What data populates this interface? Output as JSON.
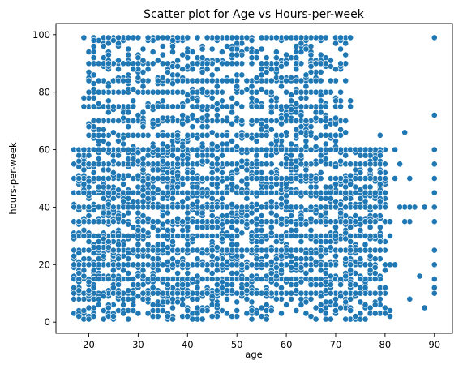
{
  "chart_data": {
    "type": "scatter",
    "title": "Scatter plot for Age vs Hours-per-week",
    "xlabel": "age",
    "ylabel": "hours-per-week",
    "xlim": [
      13.35,
      93.65
    ],
    "ylim": [
      -3.9,
      103.9
    ],
    "x_ticks": [
      20,
      30,
      40,
      50,
      60,
      70,
      80,
      90
    ],
    "y_ticks": [
      0,
      20,
      40,
      60,
      80,
      100
    ],
    "grid": false,
    "legend": "none",
    "point_color": "#1f77b4",
    "x_range_observed": [
      17,
      90
    ],
    "y_range_observed": [
      1,
      99
    ],
    "dense_regions": [
      {
        "age": [
          17,
          80
        ],
        "hours": [
          1,
          60
        ]
      },
      {
        "age": [
          20,
          72
        ],
        "hours": [
          60,
          99
        ]
      }
    ],
    "common_hours": [
      10,
      15,
      20,
      25,
      30,
      35,
      40,
      45,
      50,
      55,
      60,
      65,
      70,
      75,
      80,
      84,
      90,
      99
    ],
    "sample_points": [
      [
        90,
        99
      ],
      [
        90,
        72
      ],
      [
        90,
        60
      ],
      [
        90,
        55
      ],
      [
        90,
        50
      ],
      [
        90,
        45
      ],
      [
        90,
        40
      ],
      [
        90,
        35
      ],
      [
        90,
        25
      ],
      [
        90,
        20
      ],
      [
        90,
        15
      ],
      [
        90,
        12
      ],
      [
        90,
        10
      ],
      [
        88,
        40
      ],
      [
        87,
        16
      ],
      [
        88,
        5
      ],
      [
        86,
        40
      ],
      [
        85,
        40
      ],
      [
        85,
        35
      ],
      [
        85,
        8
      ],
      [
        85,
        50
      ],
      [
        84,
        66
      ],
      [
        84,
        40
      ],
      [
        84,
        35
      ],
      [
        83,
        40
      ],
      [
        83,
        55
      ],
      [
        82,
        50
      ],
      [
        82,
        60
      ],
      [
        81,
        30
      ],
      [
        81,
        20
      ],
      [
        81,
        4
      ],
      [
        81,
        2
      ],
      [
        80,
        45
      ],
      [
        80,
        20
      ],
      [
        80,
        12
      ],
      [
        79,
        65
      ],
      [
        78,
        10
      ],
      [
        77,
        55
      ],
      [
        77,
        40
      ],
      [
        76,
        45
      ],
      [
        75,
        60
      ],
      [
        74,
        50
      ],
      [
        73,
        99
      ],
      [
        73,
        77
      ],
      [
        73,
        75
      ],
      [
        72,
        70
      ],
      [
        71,
        80
      ],
      [
        70,
        65
      ],
      [
        72,
        10
      ],
      [
        74,
        2
      ],
      [
        68,
        90
      ],
      [
        67,
        99
      ],
      [
        66,
        99
      ],
      [
        65,
        99
      ],
      [
        64,
        99
      ],
      [
        63,
        99
      ],
      [
        62,
        99
      ],
      [
        60,
        99
      ],
      [
        58,
        99
      ],
      [
        56,
        99
      ],
      [
        55,
        99
      ],
      [
        52,
        99
      ],
      [
        50,
        99
      ],
      [
        48,
        99
      ],
      [
        46,
        99
      ],
      [
        44,
        99
      ],
      [
        42,
        99
      ],
      [
        40,
        99
      ],
      [
        38,
        99
      ],
      [
        36,
        99
      ],
      [
        34,
        99
      ],
      [
        32,
        99
      ],
      [
        30,
        99
      ],
      [
        28,
        99
      ],
      [
        26,
        99
      ],
      [
        24,
        99
      ],
      [
        22,
        98
      ],
      [
        19,
        99
      ],
      [
        21,
        98
      ],
      [
        23,
        96
      ],
      [
        25,
        98
      ],
      [
        20,
        80
      ],
      [
        19,
        78
      ],
      [
        19,
        75
      ],
      [
        20,
        84
      ],
      [
        22,
        84
      ],
      [
        24,
        90
      ],
      [
        26,
        88
      ],
      [
        27,
        90
      ],
      [
        30,
        90
      ],
      [
        33,
        90
      ],
      [
        36,
        90
      ],
      [
        40,
        92
      ],
      [
        44,
        90
      ],
      [
        47,
        90
      ],
      [
        50,
        90
      ],
      [
        53,
        90
      ],
      [
        56,
        90
      ],
      [
        60,
        90
      ],
      [
        62,
        88
      ],
      [
        64,
        86
      ],
      [
        66,
        84
      ],
      [
        61,
        85
      ],
      [
        57,
        84
      ],
      [
        54,
        85
      ],
      [
        17,
        40
      ],
      [
        17,
        20
      ],
      [
        17,
        10
      ],
      [
        18,
        50
      ],
      [
        18,
        35
      ],
      [
        18,
        15
      ],
      [
        19,
        60
      ],
      [
        19,
        45
      ],
      [
        19,
        30
      ],
      [
        20,
        25
      ],
      [
        20,
        5
      ],
      [
        21,
        55
      ],
      [
        21,
        2
      ],
      [
        22,
        70
      ],
      [
        22,
        40
      ],
      [
        23,
        65
      ],
      [
        23,
        1
      ],
      [
        24,
        50
      ],
      [
        25,
        40
      ],
      [
        25,
        75
      ],
      [
        26,
        30
      ],
      [
        27,
        60
      ],
      [
        28,
        45
      ],
      [
        28,
        1
      ],
      [
        29,
        70
      ],
      [
        30,
        40
      ],
      [
        31,
        55
      ],
      [
        32,
        20
      ],
      [
        33,
        80
      ],
      [
        34,
        40
      ],
      [
        35,
        60
      ],
      [
        36,
        50
      ],
      [
        37,
        1
      ],
      [
        38,
        40
      ],
      [
        39,
        72
      ],
      [
        40,
        45
      ],
      [
        41,
        1
      ],
      [
        42,
        60
      ],
      [
        43,
        40
      ],
      [
        44,
        80
      ],
      [
        45,
        50
      ],
      [
        46,
        40
      ],
      [
        47,
        65
      ],
      [
        48,
        40
      ],
      [
        49,
        2
      ],
      [
        50,
        40
      ],
      [
        51,
        70
      ],
      [
        52,
        45
      ],
      [
        53,
        40
      ],
      [
        54,
        60
      ],
      [
        55,
        40
      ],
      [
        56,
        1
      ],
      [
        57,
        40
      ],
      [
        58,
        50
      ],
      [
        59,
        65
      ],
      [
        60,
        40
      ],
      [
        61,
        30
      ],
      [
        62,
        40
      ],
      [
        63,
        55
      ],
      [
        64,
        20
      ],
      [
        65,
        40
      ],
      [
        66,
        15
      ],
      [
        67,
        40
      ],
      [
        68,
        30
      ],
      [
        69,
        10
      ],
      [
        70,
        40
      ],
      [
        71,
        25
      ],
      [
        72,
        40
      ],
      [
        73,
        20
      ],
      [
        74,
        35
      ],
      [
        75,
        40
      ],
      [
        76,
        30
      ],
      [
        77,
        20
      ],
      [
        78,
        40
      ],
      [
        79,
        25
      ],
      [
        80,
        40
      ],
      [
        81,
        35
      ],
      [
        82,
        20
      ]
    ]
  }
}
